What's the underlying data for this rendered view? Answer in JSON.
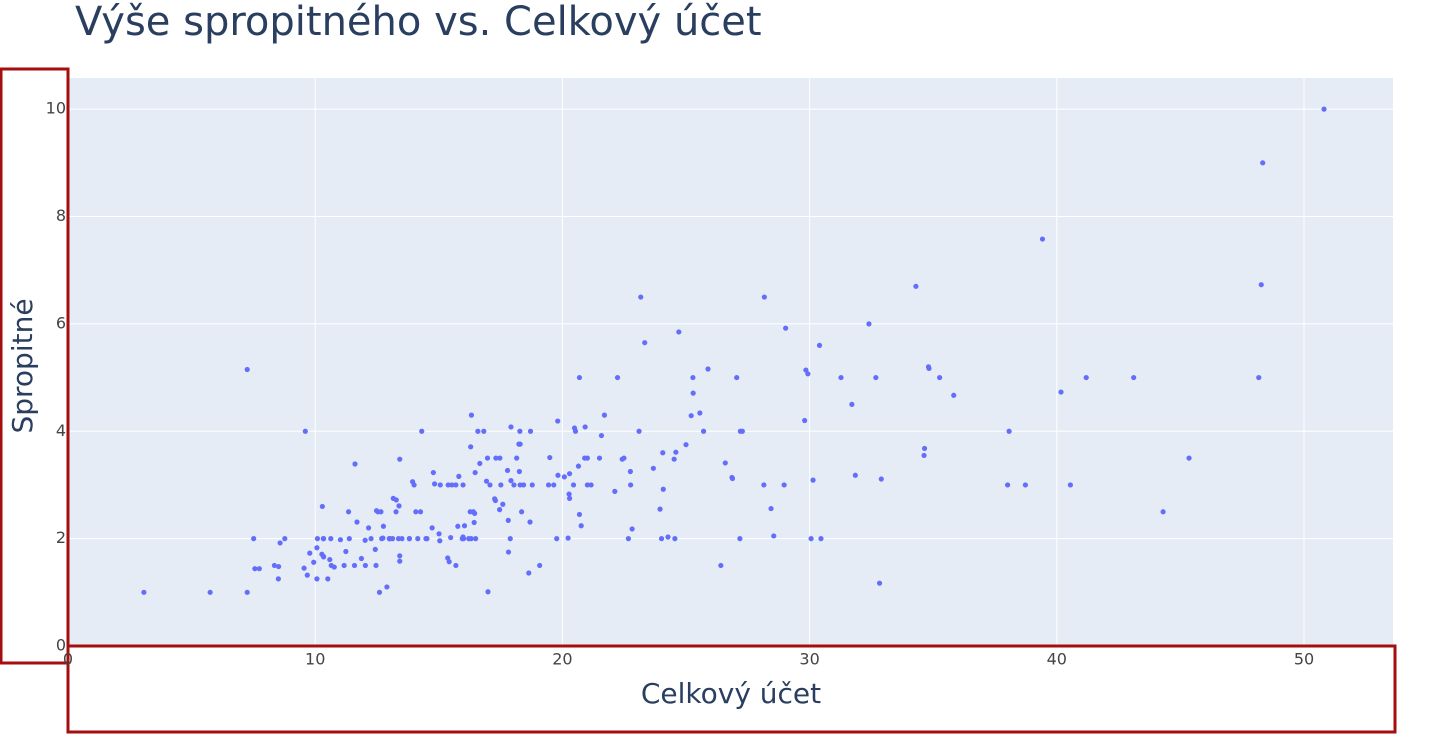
{
  "chart_data": {
    "type": "scatter",
    "title": "Výše spropitného vs. Celkový účet",
    "x_label": "Celkový účet",
    "y_label": "Spropitné",
    "color": "#636efa",
    "grid": true,
    "xlim": [
      0,
      53.6
    ],
    "ylim": [
      0,
      10.58
    ],
    "xticks": [
      0,
      10,
      20,
      30,
      40,
      50
    ],
    "yticks": [
      0,
      2,
      4,
      6,
      8,
      10
    ],
    "x": [
      16.99,
      10.34,
      21.01,
      23.68,
      24.59,
      25.29,
      8.77,
      26.88,
      15.04,
      14.78,
      10.27,
      35.26,
      15.42,
      18.43,
      14.83,
      21.58,
      10.33,
      16.29,
      16.97,
      20.65,
      17.92,
      20.29,
      15.77,
      39.42,
      19.82,
      17.81,
      13.37,
      12.69,
      21.7,
      19.65,
      9.55,
      18.35,
      15.06,
      20.69,
      17.78,
      24.06,
      16.31,
      16.93,
      18.69,
      31.27,
      16.04,
      17.46,
      13.94,
      9.68,
      30.4,
      18.29,
      22.23,
      32.4,
      28.55,
      18.04,
      12.54,
      10.29,
      34.81,
      9.94,
      25.56,
      19.49,
      38.01,
      26.41,
      11.24,
      48.27,
      20.29,
      13.81,
      11.02,
      18.29,
      17.59,
      20.08,
      16.45,
      3.07,
      20.23,
      15.01,
      12.02,
      17.07,
      26.86,
      25.28,
      14.73,
      10.51,
      17.92,
      27.2,
      22.76,
      17.29,
      19.44,
      16.66,
      10.07,
      32.68,
      15.98,
      34.83,
      13.03,
      18.28,
      24.71,
      21.16,
      28.97,
      22.49,
      5.75,
      16.32,
      22.75,
      40.17,
      27.28,
      12.03,
      21.01,
      12.46,
      11.35,
      15.38,
      44.3,
      22.42,
      20.92,
      15.36,
      20.49,
      25.21,
      18.24,
      14.31,
      14.0,
      7.25,
      38.07,
      23.95,
      25.71,
      17.31,
      29.93,
      10.65,
      12.43,
      24.08,
      11.69,
      13.42,
      14.26,
      15.95,
      12.48,
      29.8,
      8.52,
      14.52,
      11.38,
      22.82,
      19.08,
      20.27,
      11.17,
      12.26,
      18.26,
      8.51,
      10.33,
      14.15,
      16.0,
      13.16,
      17.47,
      34.3,
      41.19,
      27.05,
      16.43,
      8.35,
      18.64,
      11.87,
      9.78,
      7.51,
      14.07,
      13.13,
      17.26,
      24.55,
      19.77,
      29.85,
      48.17,
      25.0,
      13.39,
      16.49,
      21.5,
      12.66,
      16.21,
      13.81,
      17.51,
      24.52,
      20.76,
      31.71,
      10.59,
      10.63,
      50.81,
      15.81,
      7.25,
      31.85,
      16.82,
      32.9,
      17.89,
      14.48,
      9.6,
      34.63,
      34.65,
      23.33,
      45.35,
      23.17,
      40.55,
      20.69,
      20.9,
      30.46,
      18.15,
      23.1,
      15.69,
      19.81,
      28.44,
      15.48,
      16.58,
      7.56,
      10.34,
      43.11,
      13.0,
      13.51,
      18.71,
      12.74,
      13.0,
      16.4,
      20.53,
      16.47,
      26.59,
      38.73,
      24.27,
      12.76,
      30.06,
      25.89,
      48.33,
      13.27,
      28.17,
      12.9,
      28.15,
      11.59,
      7.74,
      30.14,
      12.16,
      13.42,
      8.58,
      15.98,
      13.42,
      16.27,
      10.09,
      20.45,
      13.28,
      22.12,
      24.01,
      15.69,
      11.61,
      10.77,
      15.53,
      10.07,
      12.6,
      32.83,
      35.83,
      29.03,
      27.18,
      22.67,
      17.82,
      18.78
    ],
    "values": [
      1.01,
      1.66,
      3.5,
      3.31,
      3.61,
      4.71,
      2.0,
      3.12,
      1.96,
      3.23,
      1.71,
      5.0,
      1.57,
      3.0,
      3.02,
      3.92,
      1.67,
      3.71,
      3.5,
      3.35,
      4.08,
      2.75,
      2.23,
      7.58,
      3.18,
      2.34,
      2.0,
      2.0,
      4.3,
      3.0,
      1.45,
      2.5,
      3.0,
      2.45,
      3.27,
      3.6,
      2.0,
      3.07,
      2.31,
      5.0,
      2.24,
      2.54,
      3.06,
      1.32,
      5.6,
      3.0,
      5.0,
      6.0,
      2.05,
      3.0,
      2.5,
      2.6,
      5.2,
      1.56,
      4.34,
      3.51,
      3.0,
      1.5,
      1.76,
      6.73,
      3.21,
      2.0,
      1.98,
      3.76,
      2.64,
      3.15,
      2.47,
      1.0,
      2.01,
      2.09,
      1.97,
      3.0,
      3.14,
      5.0,
      2.2,
      1.25,
      3.08,
      4.0,
      3.0,
      2.71,
      3.0,
      3.4,
      1.83,
      5.0,
      2.03,
      5.17,
      2.0,
      4.0,
      5.85,
      3.0,
      3.0,
      3.5,
      1.0,
      4.3,
      3.25,
      4.73,
      4.0,
      1.5,
      3.0,
      1.5,
      2.5,
      3.0,
      2.5,
      3.48,
      4.08,
      1.64,
      4.06,
      4.29,
      3.76,
      4.0,
      3.0,
      1.0,
      4.0,
      2.55,
      4.0,
      3.5,
      5.07,
      1.5,
      1.8,
      2.92,
      2.31,
      1.68,
      2.5,
      2.0,
      2.52,
      4.2,
      1.48,
      2.0,
      2.0,
      2.18,
      1.5,
      2.83,
      1.5,
      2.0,
      3.25,
      1.25,
      2.0,
      2.0,
      2.0,
      2.75,
      3.5,
      6.7,
      5.0,
      5.0,
      2.3,
      1.5,
      1.36,
      1.63,
      1.73,
      2.0,
      2.5,
      2.0,
      2.74,
      2.0,
      2.0,
      5.14,
      5.0,
      3.75,
      2.61,
      2.0,
      3.5,
      2.5,
      2.0,
      2.0,
      3.0,
      3.48,
      2.24,
      4.5,
      1.61,
      2.0,
      10.0,
      3.16,
      5.15,
      3.18,
      4.0,
      3.11,
      2.0,
      2.0,
      4.0,
      3.55,
      3.68,
      5.65,
      3.5,
      6.5,
      3.0,
      5.0,
      3.5,
      2.0,
      3.5,
      4.0,
      1.5,
      4.19,
      2.56,
      2.02,
      4.0,
      1.44,
      2.0,
      5.0,
      2.0,
      2.0,
      4.0,
      2.01,
      2.0,
      2.5,
      4.0,
      3.23,
      3.41,
      3.0,
      2.03,
      2.23,
      2.0,
      5.16,
      9.0,
      2.5,
      6.5,
      1.1,
      3.0,
      1.5,
      1.44,
      3.09,
      2.2,
      3.48,
      1.92,
      3.0,
      1.58,
      2.5,
      2.0,
      3.0,
      2.72,
      2.88,
      2.0,
      3.0,
      3.39,
      1.47,
      3.0,
      1.25,
      1.0,
      1.17,
      4.67,
      5.92,
      2.0,
      2.0,
      1.75,
      3.0
    ]
  }
}
